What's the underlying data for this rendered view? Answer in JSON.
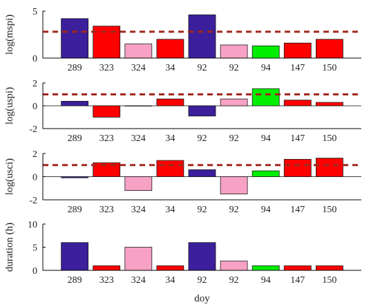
{
  "chart_data": [
    {
      "type": "bar",
      "ylabel": "log(mspi)",
      "categories": [
        "289",
        "323",
        "324",
        "34",
        "92",
        "92",
        "94",
        "147",
        "150"
      ],
      "values": [
        4.2,
        3.4,
        1.5,
        2.0,
        4.6,
        1.4,
        1.3,
        1.6,
        2.0
      ],
      "colors": [
        "#3b1f9b",
        "#ff0000",
        "#f7a1c4",
        "#ff0000",
        "#3b1f9b",
        "#f7a1c4",
        "#00ee00",
        "#ff0000",
        "#ff0000"
      ],
      "ylim": [
        0,
        5
      ],
      "yticks": [
        "0",
        "5"
      ],
      "threshold": 2.8,
      "threshold_color": "#a0281e",
      "grid": false
    },
    {
      "type": "bar",
      "ylabel": "log(uspi)",
      "categories": [
        "289",
        "323",
        "324",
        "34",
        "92",
        "92",
        "94",
        "147",
        "150"
      ],
      "values": [
        0.4,
        -1.0,
        0.0,
        0.6,
        -0.9,
        0.6,
        1.5,
        0.5,
        0.3
      ],
      "colors": [
        "#3b1f9b",
        "#ff0000",
        "#f7a1c4",
        "#ff0000",
        "#3b1f9b",
        "#f7a1c4",
        "#00ee00",
        "#ff0000",
        "#ff0000"
      ],
      "ylim": [
        -2,
        2
      ],
      "yticks": [
        "-2",
        "0",
        "2"
      ],
      "threshold": 1.0,
      "threshold_color": "#a0281e",
      "grid": false
    },
    {
      "type": "bar",
      "ylabel": "log(usci)",
      "categories": [
        "289",
        "323",
        "324",
        "34",
        "92",
        "92",
        "94",
        "147",
        "150"
      ],
      "values": [
        -0.1,
        1.2,
        -1.2,
        1.4,
        0.6,
        -1.5,
        0.5,
        1.5,
        1.6
      ],
      "colors": [
        "#3b1f9b",
        "#ff0000",
        "#f7a1c4",
        "#ff0000",
        "#3b1f9b",
        "#f7a1c4",
        "#00ee00",
        "#ff0000",
        "#ff0000"
      ],
      "ylim": [
        -2,
        2
      ],
      "yticks": [
        "-2",
        "0",
        "2"
      ],
      "threshold": 1.0,
      "threshold_color": "#a0281e",
      "grid": false
    },
    {
      "type": "bar",
      "ylabel": "duration (h)",
      "xlabel": "doy",
      "categories": [
        "289",
        "323",
        "324",
        "34",
        "92",
        "92",
        "94",
        "147",
        "150"
      ],
      "values": [
        6,
        1,
        5,
        1,
        6,
        2,
        1,
        1,
        1
      ],
      "colors": [
        "#3b1f9b",
        "#ff0000",
        "#f7a1c4",
        "#ff0000",
        "#3b1f9b",
        "#f7a1c4",
        "#00ee00",
        "#ff0000",
        "#ff0000"
      ],
      "ylim": [
        0,
        10
      ],
      "yticks": [
        "0",
        "5",
        "10"
      ],
      "grid": false
    }
  ]
}
